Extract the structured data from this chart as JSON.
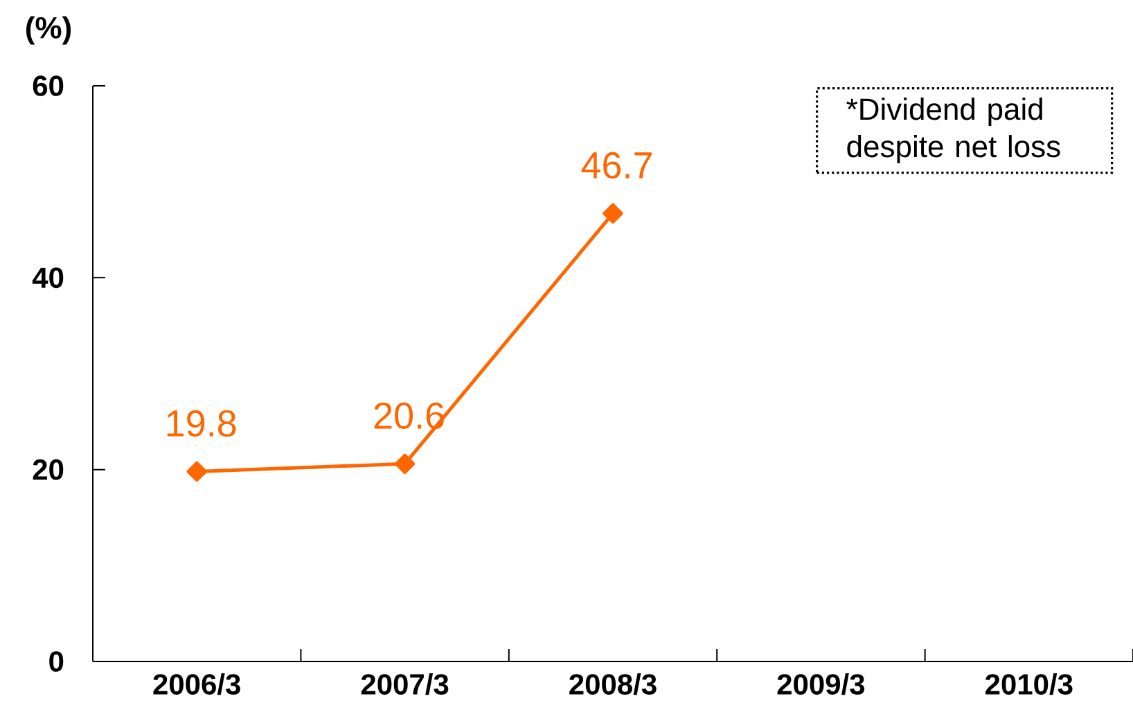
{
  "chart_data": {
    "type": "line",
    "ylabel": "(%)",
    "categories": [
      "2006/3",
      "2007/3",
      "2008/3",
      "2009/3",
      "2010/3"
    ],
    "series": [
      {
        "color": "#ff6600",
        "values": [
          19.8,
          20.6,
          46.7,
          null,
          null
        ]
      }
    ],
    "ylim": [
      0,
      60
    ],
    "yticks": [
      0,
      20,
      40,
      60
    ],
    "data_labels": true,
    "marker": "diamond",
    "line_style": "solid",
    "annotations": [
      "*Dividend paid despite net loss"
    ]
  }
}
